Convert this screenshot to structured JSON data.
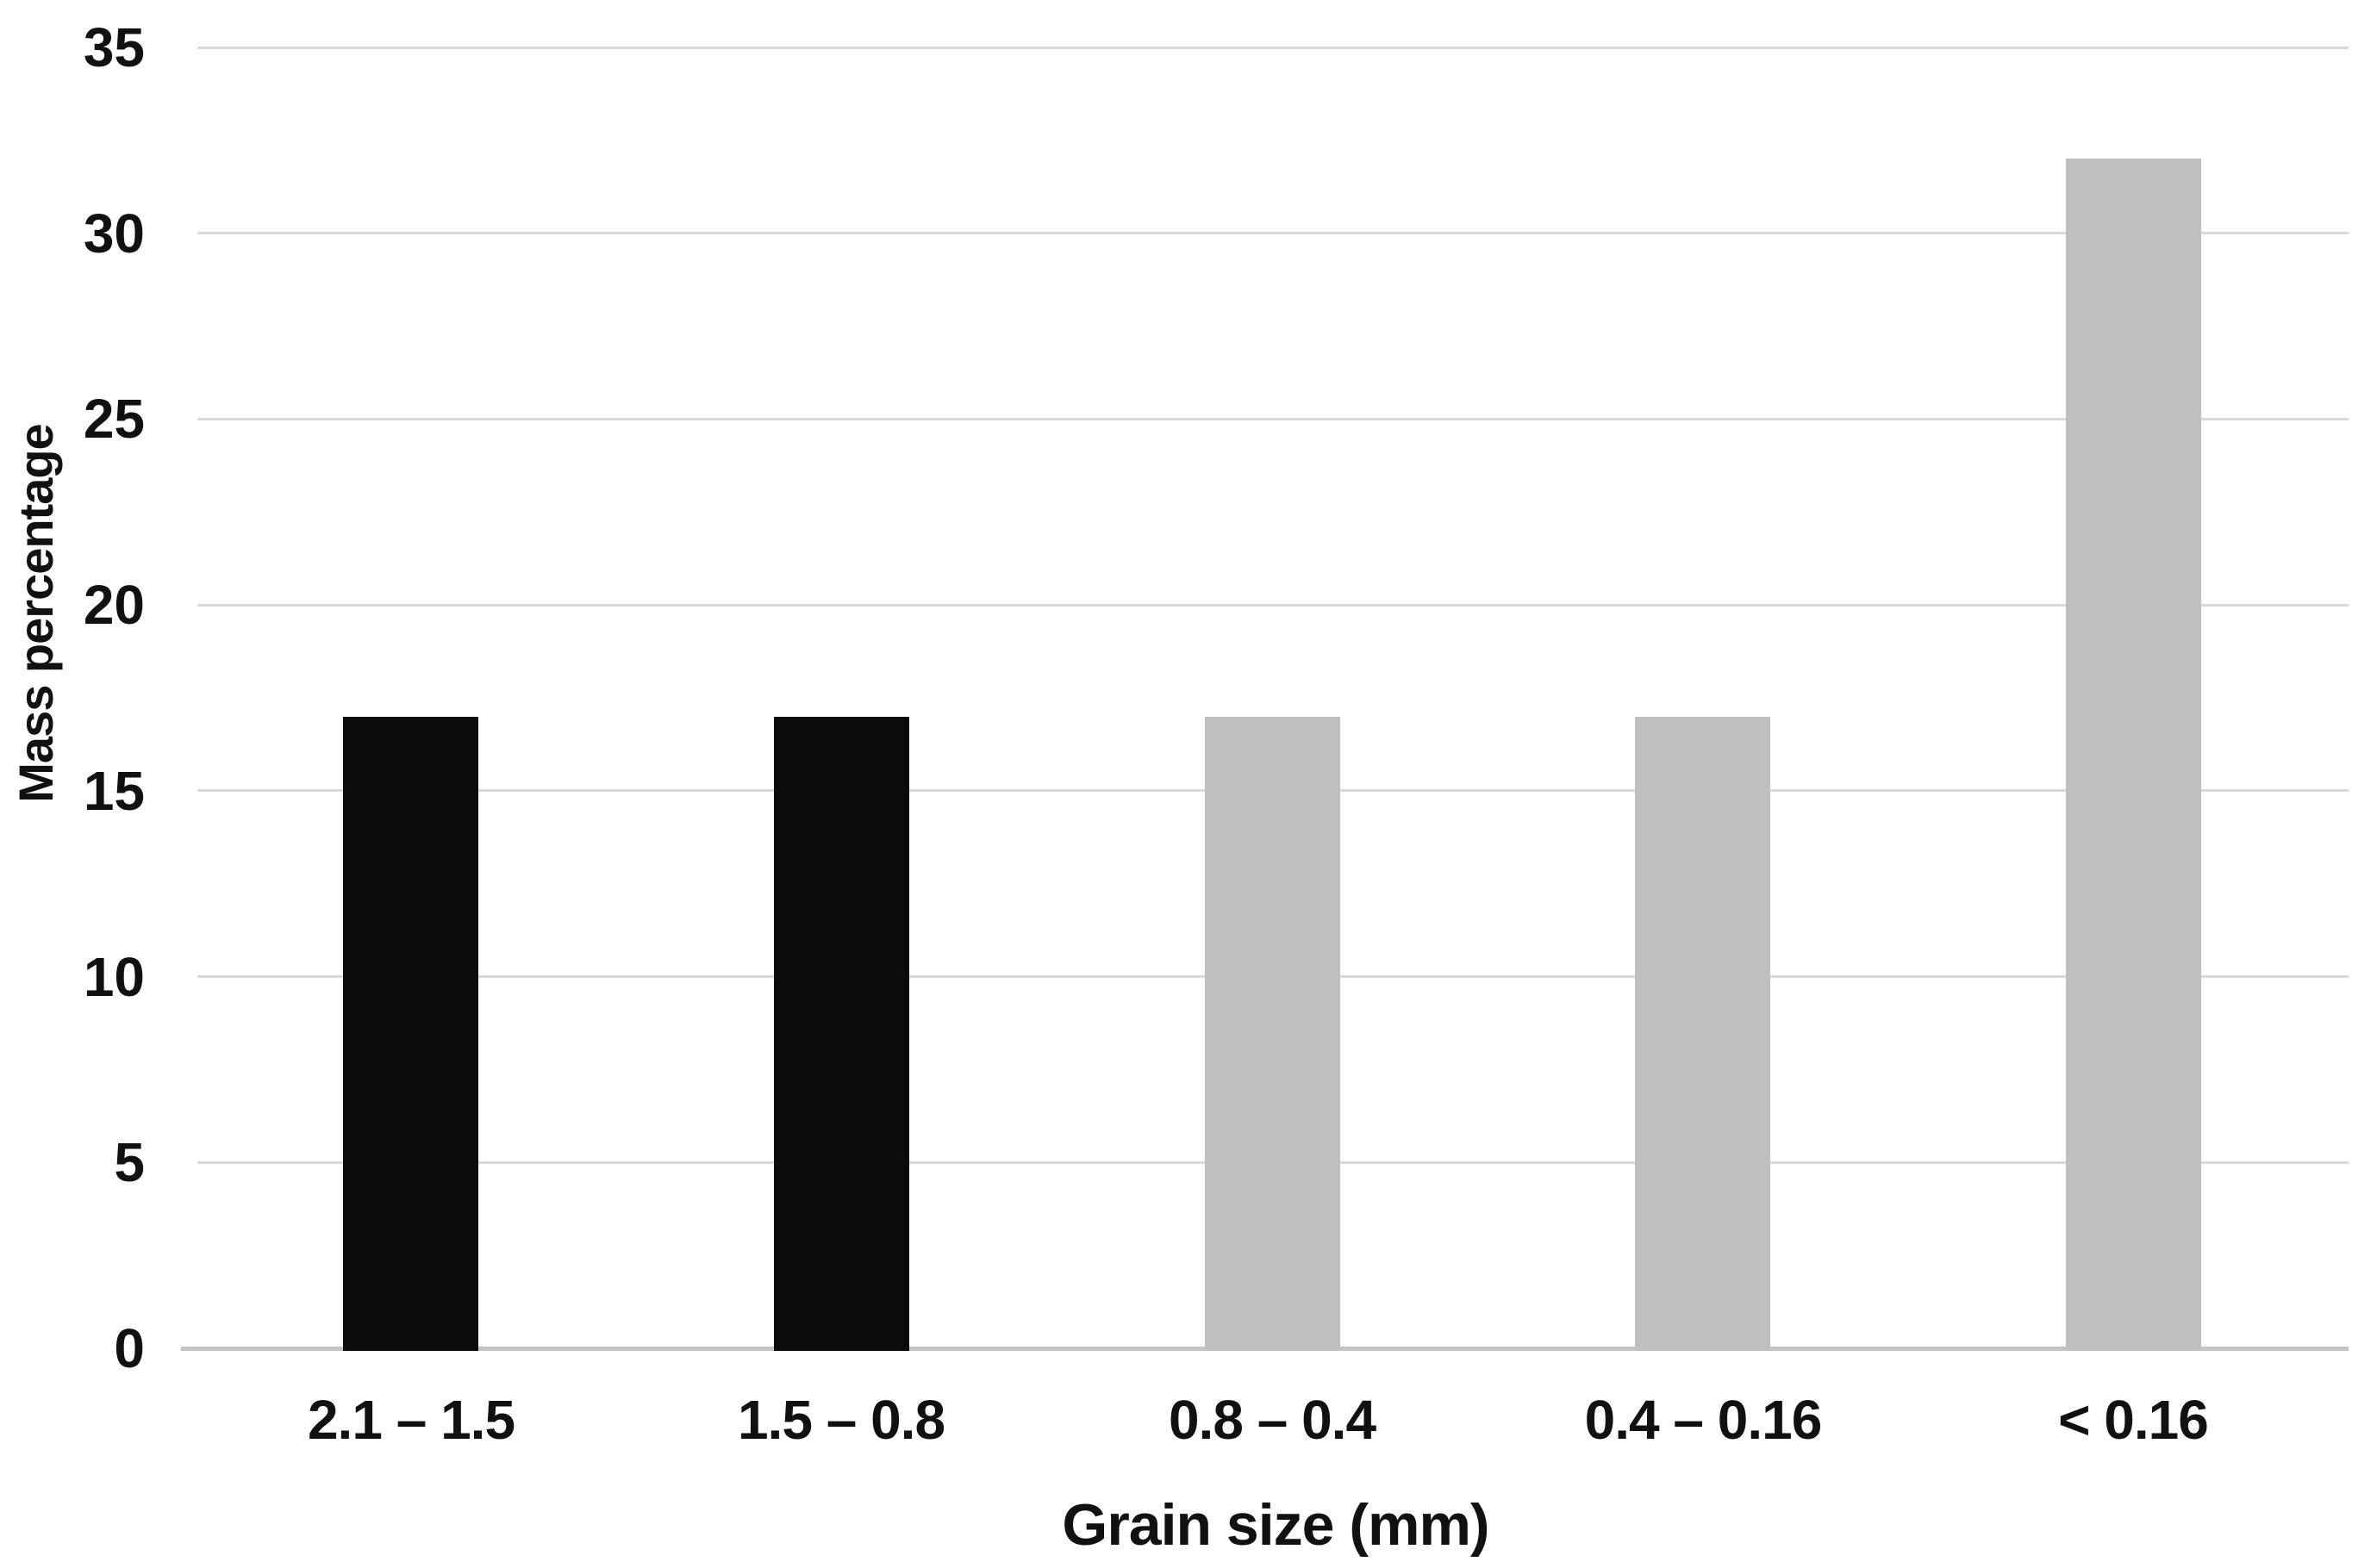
{
  "chart_data": {
    "type": "bar",
    "title": "",
    "xlabel": "Grain size (mm)",
    "ylabel": "Mass percentage",
    "categories": [
      "2.1 – 1.5",
      "1.5 – 0.8",
      "0.8 – 0.4",
      "0.4 – 0.16",
      "< 0.16"
    ],
    "values": [
      17,
      17,
      17,
      17,
      32
    ],
    "bar_colors": [
      "#0b0b0b",
      "#0b0b0b",
      "#bfbfbf",
      "#bfbfbf",
      "#bfbfbf"
    ],
    "ylim": [
      0,
      35
    ],
    "yticks": [
      0,
      5,
      10,
      15,
      20,
      25,
      30,
      35
    ],
    "grid": "horizontal",
    "gridline_color": "#d9d9d9",
    "axis_line_color": "#c3c3c3",
    "text_color": "#111111",
    "background_color": "#ffffff",
    "legend_position": "none"
  }
}
